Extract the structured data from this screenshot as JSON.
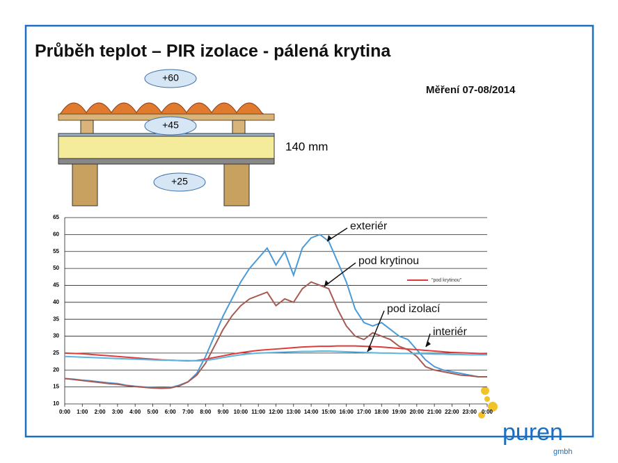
{
  "title": "Průběh teplot – PIR izolace - pálená krytina",
  "subtitle": "Měření 07-08/2014",
  "diagram": {
    "labels": [
      "+60",
      "+45",
      "+25"
    ],
    "thickness": "140 mm"
  },
  "logo": {
    "name": "puren",
    "suffix": "gmbh"
  },
  "chart_data": {
    "type": "line",
    "legend_note": "\"pod krytinou\"",
    "x": [
      0,
      0.5,
      1,
      1.5,
      2,
      2.5,
      3,
      3.5,
      4,
      4.5,
      5,
      5.5,
      6,
      6.5,
      7,
      7.5,
      8,
      8.5,
      9,
      9.5,
      10,
      10.5,
      11,
      11.5,
      12,
      12.5,
      13,
      13.5,
      14,
      14.5,
      15,
      15.5,
      16,
      16.5,
      17,
      17.5,
      18,
      18.5,
      19,
      19.5,
      20,
      20.5,
      21,
      21.5,
      22,
      22.5,
      23,
      23.5,
      24
    ],
    "xlim": [
      0,
      24
    ],
    "xticks": [
      {
        "value": 0,
        "label": "0:00"
      },
      {
        "value": 1,
        "label": "1:00"
      },
      {
        "value": 2,
        "label": "2:00"
      },
      {
        "value": 3,
        "label": "3:00"
      },
      {
        "value": 4,
        "label": "4:00"
      },
      {
        "value": 5,
        "label": "5:00"
      },
      {
        "value": 6,
        "label": "6:00"
      },
      {
        "value": 7,
        "label": "7:00"
      },
      {
        "value": 8,
        "label": "8:00"
      },
      {
        "value": 9,
        "label": "9:00"
      },
      {
        "value": 10,
        "label": "10:00"
      },
      {
        "value": 11,
        "label": "11:00"
      },
      {
        "value": 12,
        "label": "12:00"
      },
      {
        "value": 13,
        "label": "13:00"
      },
      {
        "value": 14,
        "label": "14:00"
      },
      {
        "value": 15,
        "label": "15:00"
      },
      {
        "value": 16,
        "label": "16:00"
      },
      {
        "value": 17,
        "label": "17:00"
      },
      {
        "value": 18,
        "label": "18:00"
      },
      {
        "value": 19,
        "label": "19:00"
      },
      {
        "value": 20,
        "label": "20:00"
      },
      {
        "value": 21,
        "label": "21:00"
      },
      {
        "value": 22,
        "label": "22:00"
      },
      {
        "value": 23,
        "label": "23:00"
      },
      {
        "value": 24,
        "label": "0:00"
      }
    ],
    "ylim": [
      10,
      65
    ],
    "yticks": [
      10,
      15,
      20,
      25,
      30,
      35,
      40,
      45,
      50,
      55,
      60,
      65
    ],
    "grid": true,
    "series": [
      {
        "name": "exteriér",
        "color": "#4a9ad8",
        "values": [
          17.5,
          17.3,
          17,
          16.8,
          16.5,
          16.2,
          16,
          15.5,
          15.2,
          15,
          14.8,
          14.7,
          14.8,
          15.5,
          16.5,
          19,
          24,
          30,
          36,
          41,
          46,
          50,
          53,
          56,
          51,
          55,
          48,
          56,
          59,
          60,
          58,
          52,
          46,
          38,
          34,
          33,
          34,
          32,
          30,
          29,
          26,
          23,
          21,
          20,
          19.5,
          19,
          18.5,
          18,
          18
        ]
      },
      {
        "name": "pod krytinou",
        "color": "#a65a52",
        "values": [
          17.5,
          17.2,
          16.9,
          16.6,
          16.3,
          16,
          15.8,
          15.4,
          15.1,
          14.9,
          14.7,
          14.6,
          14.7,
          15.3,
          16.5,
          18.5,
          22,
          27,
          32,
          36,
          39,
          41,
          42,
          43,
          39,
          41,
          40,
          44,
          46,
          45,
          44,
          38,
          33,
          30,
          29,
          31,
          30,
          29,
          27,
          26,
          24,
          21,
          20,
          19.5,
          19,
          18.5,
          18.3,
          18,
          18
        ]
      },
      {
        "name": "pod izolací",
        "color": "#e03a3a",
        "values": [
          25,
          24.9,
          24.8,
          24.6,
          24.4,
          24.2,
          24,
          23.8,
          23.6,
          23.4,
          23.2,
          23,
          22.9,
          22.8,
          22.7,
          22.8,
          23.2,
          23.7,
          24.2,
          24.7,
          25.1,
          25.5,
          25.8,
          26,
          26.2,
          26.4,
          26.6,
          26.8,
          26.9,
          27,
          27,
          27.1,
          27.1,
          27.1,
          27,
          26.9,
          26.8,
          26.6,
          26.4,
          26.2,
          26,
          25.8,
          25.6,
          25.4,
          25.2,
          25.1,
          25,
          24.9,
          24.8
        ]
      },
      {
        "name": "interiér",
        "color": "#5ab4e4",
        "values": [
          24,
          23.9,
          23.8,
          23.7,
          23.6,
          23.5,
          23.4,
          23.3,
          23.2,
          23.1,
          23,
          22.9,
          22.9,
          22.8,
          22.8,
          22.7,
          22.8,
          23.2,
          23.7,
          24.1,
          24.5,
          24.8,
          25,
          25.1,
          25.2,
          25.3,
          25.4,
          25.5,
          25.5,
          25.6,
          25.6,
          25.5,
          25.4,
          25.3,
          25.2,
          25.1,
          25,
          25,
          24.9,
          24.9,
          24.8,
          24.8,
          24.7,
          24.7,
          24.6,
          24.6,
          24.5,
          24.5,
          24.5
        ]
      }
    ]
  }
}
